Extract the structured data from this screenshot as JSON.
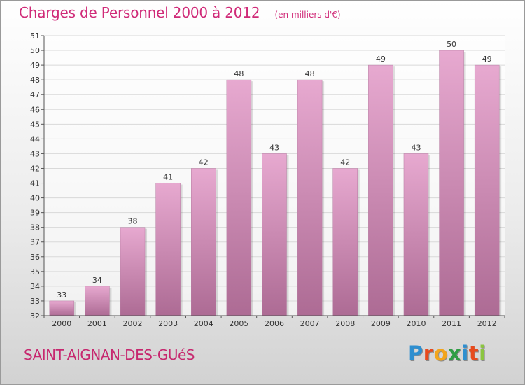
{
  "header": {
    "title": "Charges de Personnel 2000 à 2012",
    "unit": "(en milliers d'€)"
  },
  "footer": {
    "commune": "SAINT-AIGNAN-DES-GUéS",
    "logo": {
      "text": "Proxiti",
      "letters": [
        {
          "char": "P",
          "color": "#2e8fd0"
        },
        {
          "char": "r",
          "color": "#e84a1c"
        },
        {
          "char": "o",
          "color": "#f2a51c"
        },
        {
          "char": "x",
          "color": "#2f9e44"
        },
        {
          "char": "i",
          "color": "#2e8fd0"
        },
        {
          "char": "t",
          "color": "#e84a1c"
        },
        {
          "char": "i",
          "color": "#8bc53f"
        }
      ]
    }
  },
  "colors": {
    "bar_top": "#e7a9d0",
    "bar_bottom": "#ad6b94",
    "grid": "#d9d9d9",
    "axis": "#555555",
    "title": "#d02a78"
  },
  "chart_data": {
    "type": "bar",
    "title": "Charges de Personnel 2000 à 2012",
    "categories": [
      "2000",
      "2001",
      "2002",
      "2003",
      "2004",
      "2005",
      "2006",
      "2007",
      "2008",
      "2009",
      "2010",
      "2011",
      "2012"
    ],
    "values": [
      33,
      34,
      38,
      41,
      42,
      48,
      43,
      48,
      42,
      49,
      43,
      50,
      49
    ],
    "ylim": [
      32,
      51
    ],
    "yticks": [
      32,
      33,
      34,
      35,
      36,
      37,
      38,
      39,
      40,
      41,
      42,
      43,
      44,
      45,
      46,
      47,
      48,
      49,
      50,
      51
    ],
    "grid": true,
    "xlabel": "",
    "ylabel": ""
  }
}
